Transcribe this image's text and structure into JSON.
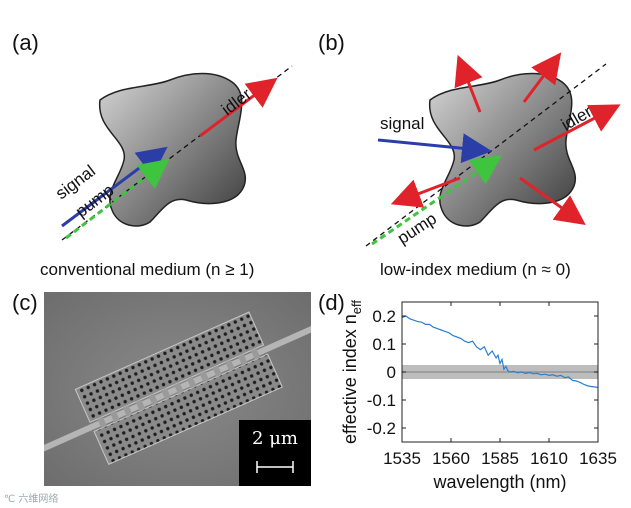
{
  "panels": {
    "a": {
      "label": "(a)",
      "caption": "conventional medium (n ≥ 1)",
      "beams": {
        "signal": "signal",
        "pump": "pump",
        "idler": "idler"
      }
    },
    "b": {
      "label": "(b)",
      "caption": "low-index medium (n ≈ 0)",
      "beams": {
        "signal": "signal",
        "pump": "pump",
        "idler": "idler"
      }
    },
    "c": {
      "label": "(c)",
      "scale_bar": "2 μm"
    },
    "d": {
      "label": "(d)"
    }
  },
  "colors": {
    "signal": "#2b3ea8",
    "pump": "#3ec43e",
    "idler": "#e0232a",
    "curve": "#2a7fd1"
  },
  "chart_data": {
    "type": "line",
    "title": "",
    "xlabel": "wavelength (nm)",
    "ylabel_main": "effective index n",
    "ylabel_sub": "eff",
    "xlim": [
      1535,
      1635
    ],
    "ylim": [
      -0.25,
      0.25
    ],
    "xticks": [
      "1535",
      "1560",
      "1585",
      "1610",
      "1635"
    ],
    "xtick_values": [
      1535,
      1560,
      1585,
      1610,
      1635
    ],
    "yticks": [
      "0.2",
      "0.1",
      "0",
      "-0.1",
      "-0.2"
    ],
    "ytick_values": [
      0.2,
      0.1,
      0,
      -0.1,
      -0.2
    ],
    "band": {
      "low": -0.025,
      "high": 0.025,
      "center": 0
    },
    "series": [
      {
        "name": "n_eff",
        "x": [
          1535,
          1537,
          1539,
          1541,
          1543,
          1545,
          1547,
          1549,
          1551,
          1553,
          1555,
          1557,
          1559,
          1561,
          1563,
          1565,
          1567,
          1569,
          1571,
          1573,
          1575,
          1577,
          1579,
          1581,
          1583,
          1584,
          1585,
          1586,
          1587,
          1588,
          1589,
          1590,
          1592,
          1594,
          1596,
          1598,
          1600,
          1602,
          1604,
          1606,
          1608,
          1610,
          1612,
          1614,
          1616,
          1618,
          1620,
          1622,
          1624,
          1626,
          1628,
          1630,
          1632,
          1635
        ],
        "y": [
          0.195,
          0.2,
          0.19,
          0.185,
          0.18,
          0.178,
          0.17,
          0.17,
          0.16,
          0.155,
          0.15,
          0.145,
          0.14,
          0.13,
          0.125,
          0.12,
          0.11,
          0.105,
          0.11,
          0.09,
          0.08,
          0.09,
          0.06,
          0.075,
          0.05,
          0.06,
          0.03,
          0.045,
          0.01,
          0.02,
          0.005,
          0.0,
          0.002,
          -0.003,
          0.0,
          -0.005,
          -0.002,
          -0.006,
          -0.005,
          -0.01,
          -0.008,
          -0.012,
          -0.01,
          -0.015,
          -0.012,
          -0.02,
          -0.018,
          -0.03,
          -0.032,
          -0.038,
          -0.045,
          -0.05,
          -0.052,
          -0.055
        ]
      }
    ]
  },
  "watermark": "℃ 六维网络"
}
